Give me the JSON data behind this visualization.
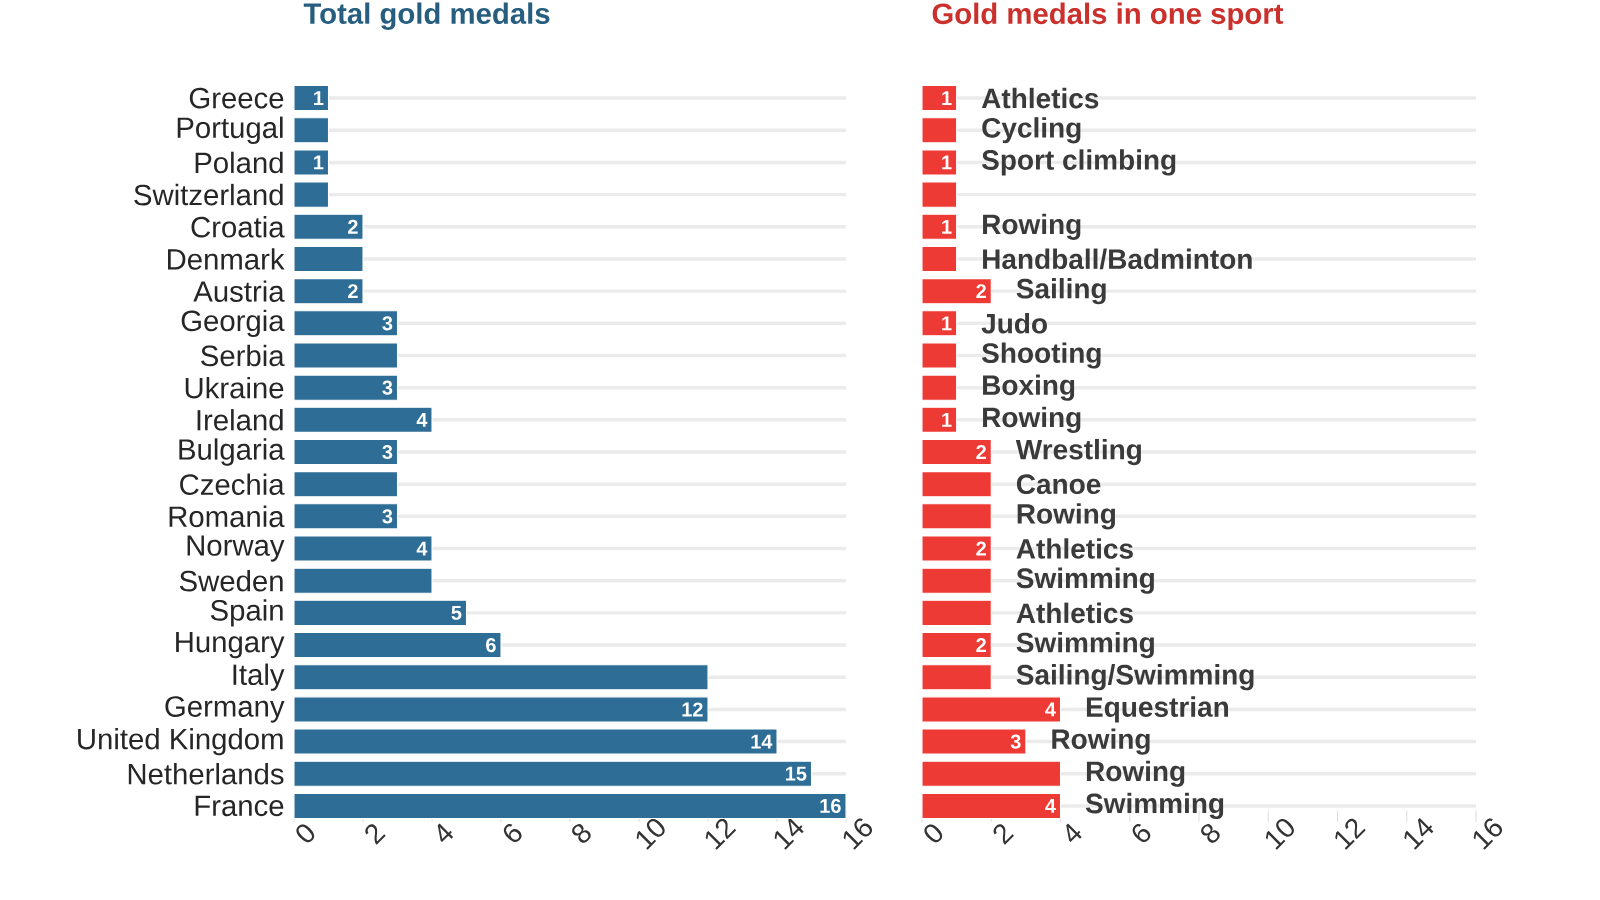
{
  "chart_data": [
    {
      "type": "bar",
      "orientation": "horizontal",
      "title": "Total gold medals",
      "color": "#2e6e96",
      "categories": [
        "Greece",
        "Portugal",
        "Poland",
        "Switzerland",
        "Croatia",
        "Denmark",
        "Austria",
        "Georgia",
        "Serbia",
        "Ukraine",
        "Ireland",
        "Bulgaria",
        "Czechia",
        "Romania",
        "Norway",
        "Sweden",
        "Spain",
        "Hungary",
        "Italy",
        "Germany",
        "United Kingdom",
        "Netherlands",
        "France"
      ],
      "values": [
        1,
        1,
        1,
        1,
        2,
        2,
        2,
        3,
        3,
        3,
        4,
        3,
        3,
        3,
        4,
        4,
        5,
        6,
        12,
        12,
        14,
        15,
        16
      ],
      "value_labels": [
        "1",
        null,
        "1",
        null,
        "2",
        null,
        "2",
        "3",
        null,
        "3",
        "4",
        "3",
        null,
        "3",
        "4",
        null,
        "5",
        "6",
        null,
        "12",
        "14",
        "15",
        "16"
      ],
      "xlim": [
        0,
        16
      ],
      "xticks": [
        0,
        2,
        4,
        6,
        8,
        10,
        12,
        14,
        16
      ],
      "grid": "y"
    },
    {
      "type": "bar",
      "orientation": "horizontal",
      "title": "Gold medals in one sport",
      "color": "#ee3a35",
      "categories": [
        "Greece",
        "Portugal",
        "Poland",
        "Switzerland",
        "Croatia",
        "Denmark",
        "Austria",
        "Georgia",
        "Serbia",
        "Ukraine",
        "Ireland",
        "Bulgaria",
        "Czechia",
        "Romania",
        "Norway",
        "Sweden",
        "Spain",
        "Hungary",
        "Italy",
        "Germany",
        "United Kingdom",
        "Netherlands",
        "France"
      ],
      "values": [
        1,
        1,
        1,
        1,
        1,
        1,
        2,
        1,
        1,
        1,
        1,
        2,
        2,
        2,
        2,
        2,
        2,
        2,
        2,
        4,
        3,
        4,
        4
      ],
      "value_labels": [
        "1",
        null,
        "1",
        null,
        "1",
        null,
        "2",
        "1",
        null,
        null,
        "1",
        "2",
        null,
        null,
        "2",
        null,
        null,
        "2",
        null,
        "4",
        "3",
        null,
        "4"
      ],
      "annotations": [
        {
          "text": "Athletics",
          "x": 1,
          "y": "Greece"
        },
        {
          "text": "Cycling",
          "x": 1,
          "y": "Portugal"
        },
        {
          "text": "Sport climbing",
          "x": 1,
          "y": "Poland"
        },
        {
          "text": "Rowing",
          "x": 1,
          "y": "Croatia"
        },
        {
          "text": "Handball/Badminton",
          "x": 1,
          "y": "Denmark"
        },
        {
          "text": "Sailing",
          "x": 2,
          "y": "Austria"
        },
        {
          "text": "Judo",
          "x": 1,
          "y": "Georgia"
        },
        {
          "text": "Shooting",
          "x": 1,
          "y": "Serbia"
        },
        {
          "text": "Boxing",
          "x": 1,
          "y": "Ukraine"
        },
        {
          "text": "Rowing",
          "x": 1,
          "y": "Ireland"
        },
        {
          "text": "Wrestling",
          "x": 2,
          "y": "Bulgaria"
        },
        {
          "text": "Canoe",
          "x": 2,
          "y": "Czechia"
        },
        {
          "text": "Rowing",
          "x": 2,
          "y": "Romania"
        },
        {
          "text": "Athletics",
          "x": 2,
          "y": "Norway"
        },
        {
          "text": "Swimming",
          "x": 2,
          "y": "Sweden"
        },
        {
          "text": "Athletics",
          "x": 2,
          "y": "Spain"
        },
        {
          "text": "Swimming",
          "x": 2,
          "y": "Hungary"
        },
        {
          "text": "Sailing/Swimming",
          "x": 2,
          "y": "Italy"
        },
        {
          "text": "Equestrian",
          "x": 4,
          "y": "Germany"
        },
        {
          "text": "Rowing",
          "x": 3,
          "y": "United Kingdom"
        },
        {
          "text": "Rowing",
          "x": 4,
          "y": "Netherlands"
        },
        {
          "text": "Swimming",
          "x": 4,
          "y": "France"
        }
      ],
      "xlim": [
        0,
        16
      ],
      "xticks": [
        0,
        2,
        4,
        6,
        8,
        10,
        12,
        14,
        16
      ],
      "grid": "y",
      "tick_labels": "x"
    }
  ]
}
